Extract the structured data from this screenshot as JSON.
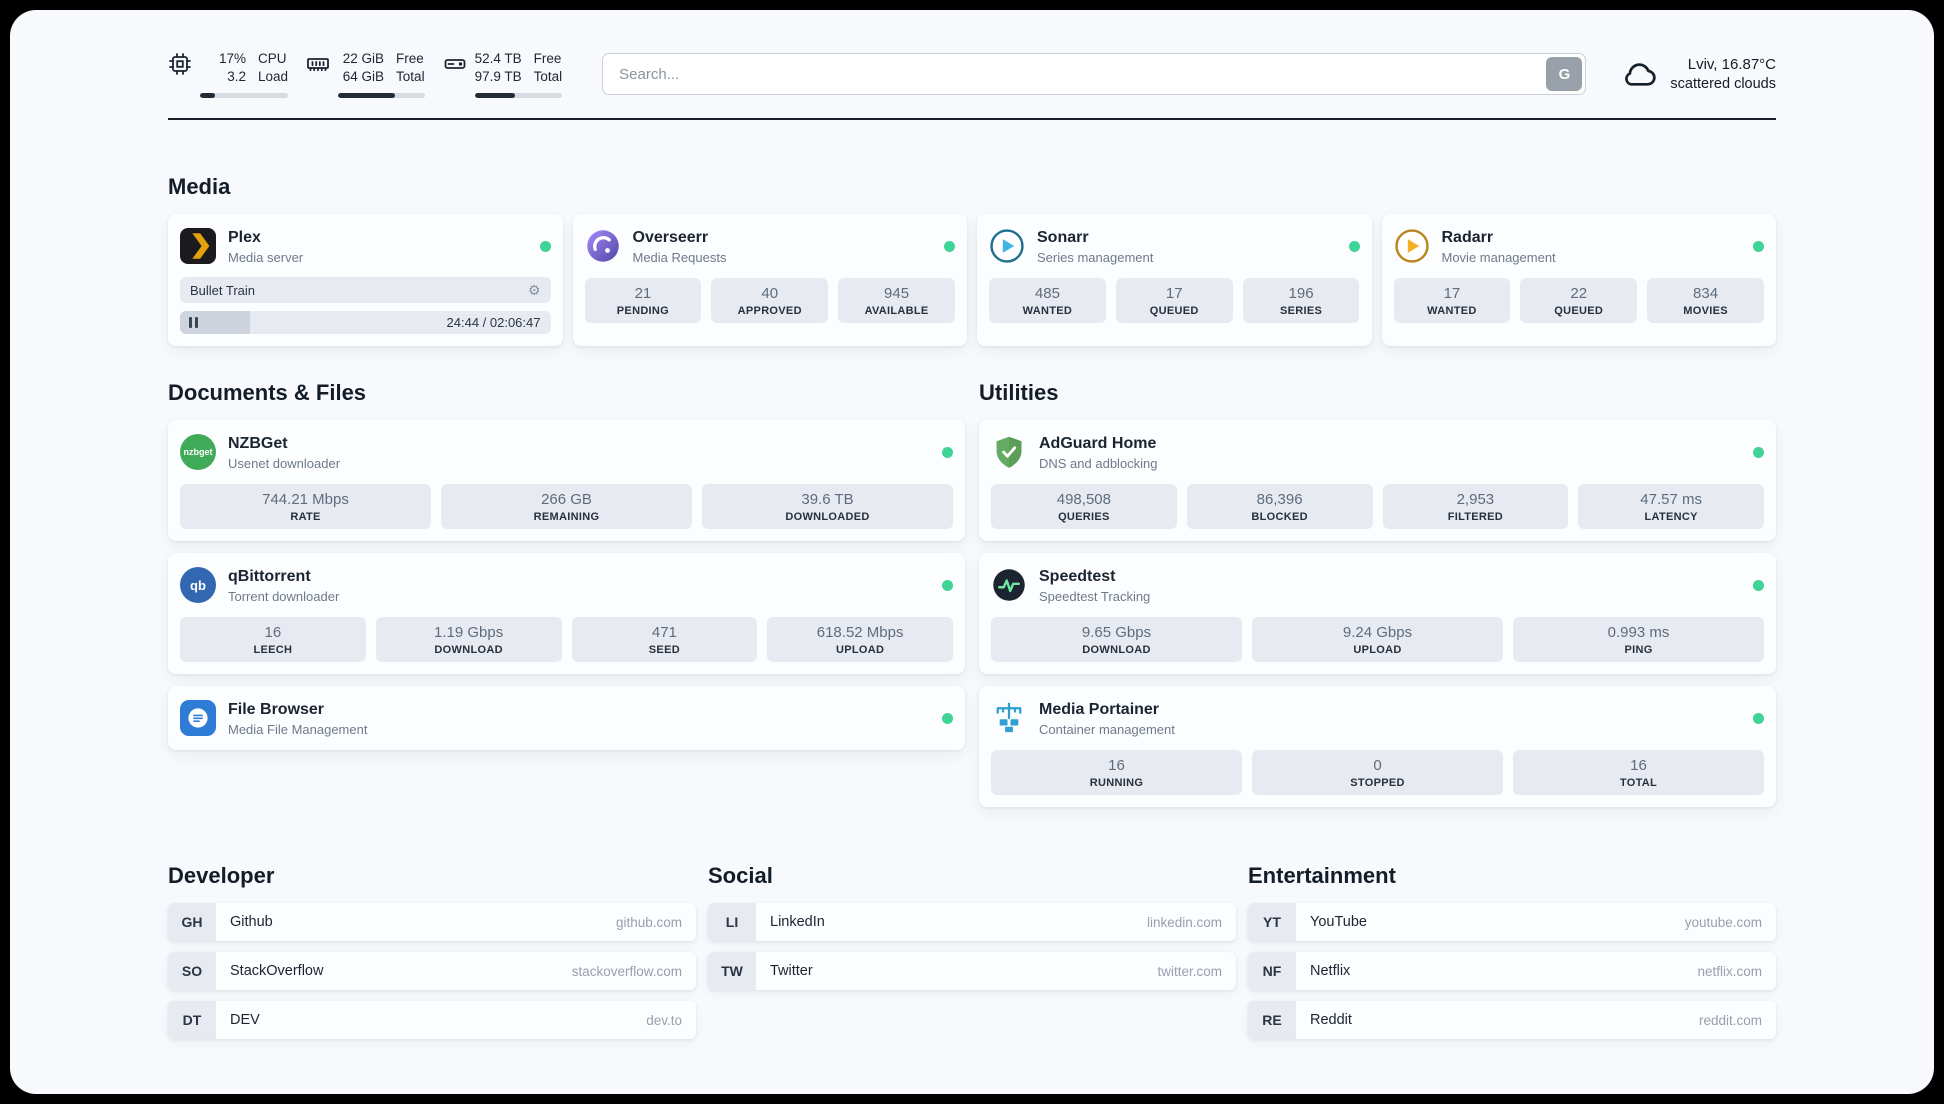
{
  "colors": {
    "status_online": "#3fd495",
    "plex_accent": "#e5a00d",
    "divider": "#1a202c",
    "page_background": "#f7f9fc",
    "stat_block_background": "#e7ebf1"
  },
  "header": {
    "resources": [
      {
        "name": "cpu",
        "value_primary": "17%",
        "value_secondary": "3.2",
        "label_primary": "CPU",
        "label_secondary": "Load",
        "progress_percent": 17
      },
      {
        "name": "memory",
        "value_primary": "22 GiB",
        "value_secondary": "64 GiB",
        "label_primary": "Free",
        "label_secondary": "Total",
        "progress_percent": 66
      },
      {
        "name": "disk",
        "value_primary": "52.4 TB",
        "value_secondary": "97.9 TB",
        "label_primary": "Free",
        "label_secondary": "Total",
        "progress_percent": 46
      }
    ],
    "search": {
      "placeholder": "Search...",
      "button_label": "G"
    },
    "weather": {
      "location": "Lviv, 16.87°C",
      "condition": "scattered clouds"
    }
  },
  "media": {
    "title": "Media",
    "plex": {
      "name": "Plex",
      "subtitle": "Media server",
      "status": "online",
      "now_playing": {
        "title": "Bullet Train",
        "time_display": "24:44 / 02:06:47",
        "progress_percent": 19
      }
    },
    "overseerr": {
      "name": "Overseerr",
      "subtitle": "Media Requests",
      "status": "online",
      "stats": [
        {
          "value": "21",
          "label": "PENDING"
        },
        {
          "value": "40",
          "label": "APPROVED"
        },
        {
          "value": "945",
          "label": "AVAILABLE"
        }
      ]
    },
    "sonarr": {
      "name": "Sonarr",
      "subtitle": "Series management",
      "status": "online",
      "stats": [
        {
          "value": "485",
          "label": "WANTED"
        },
        {
          "value": "17",
          "label": "QUEUED"
        },
        {
          "value": "196",
          "label": "SERIES"
        }
      ]
    },
    "radarr": {
      "name": "Radarr",
      "subtitle": "Movie management",
      "status": "online",
      "stats": [
        {
          "value": "17",
          "label": "WANTED"
        },
        {
          "value": "22",
          "label": "QUEUED"
        },
        {
          "value": "834",
          "label": "MOVIES"
        }
      ]
    }
  },
  "documents": {
    "title": "Documents & Files",
    "nzbget": {
      "name": "NZBGet",
      "subtitle": "Usenet downloader",
      "status": "online",
      "icon_text": "nzbget",
      "stats": [
        {
          "value": "744.21 Mbps",
          "label": "RATE"
        },
        {
          "value": "266 GB",
          "label": "REMAINING"
        },
        {
          "value": "39.6 TB",
          "label": "DOWNLOADED"
        }
      ]
    },
    "qbittorrent": {
      "name": "qBittorrent",
      "subtitle": "Torrent downloader",
      "status": "online",
      "icon_text": "qb",
      "stats": [
        {
          "value": "16",
          "label": "LEECH"
        },
        {
          "value": "1.19 Gbps",
          "label": "DOWNLOAD"
        },
        {
          "value": "471",
          "label": "SEED"
        },
        {
          "value": "618.52 Mbps",
          "label": "UPLOAD"
        }
      ]
    },
    "filebrowser": {
      "name": "File Browser",
      "subtitle": "Media File Management",
      "status": "online"
    }
  },
  "utilities": {
    "title": "Utilities",
    "adguard": {
      "name": "AdGuard Home",
      "subtitle": "DNS and adblocking",
      "status": "online",
      "stats": [
        {
          "value": "498,508",
          "label": "QUERIES"
        },
        {
          "value": "86,396",
          "label": "BLOCKED"
        },
        {
          "value": "2,953",
          "label": "FILTERED"
        },
        {
          "value": "47.57 ms",
          "label": "LATENCY"
        }
      ]
    },
    "speedtest": {
      "name": "Speedtest",
      "subtitle": "Speedtest Tracking",
      "status": "online",
      "stats": [
        {
          "value": "9.65 Gbps",
          "label": "DOWNLOAD"
        },
        {
          "value": "9.24 Gbps",
          "label": "UPLOAD"
        },
        {
          "value": "0.993 ms",
          "label": "PING"
        }
      ]
    },
    "portainer": {
      "name": "Media Portainer",
      "subtitle": "Container management",
      "status": "online",
      "stats": [
        {
          "value": "16",
          "label": "RUNNING"
        },
        {
          "value": "0",
          "label": "STOPPED"
        },
        {
          "value": "16",
          "label": "TOTAL"
        }
      ]
    }
  },
  "bookmarks": {
    "developer": {
      "title": "Developer",
      "items": [
        {
          "abbr": "GH",
          "name": "Github",
          "domain": "github.com"
        },
        {
          "abbr": "SO",
          "name": "StackOverflow",
          "domain": "stackoverflow.com"
        },
        {
          "abbr": "DT",
          "name": "DEV",
          "domain": "dev.to"
        }
      ]
    },
    "social": {
      "title": "Social",
      "items": [
        {
          "abbr": "LI",
          "name": "LinkedIn",
          "domain": "linkedin.com"
        },
        {
          "abbr": "TW",
          "name": "Twitter",
          "domain": "twitter.com"
        }
      ]
    },
    "entertainment": {
      "title": "Entertainment",
      "items": [
        {
          "abbr": "YT",
          "name": "YouTube",
          "domain": "youtube.com"
        },
        {
          "abbr": "NF",
          "name": "Netflix",
          "domain": "netflix.com"
        },
        {
          "abbr": "RE",
          "name": "Reddit",
          "domain": "reddit.com"
        }
      ]
    }
  }
}
